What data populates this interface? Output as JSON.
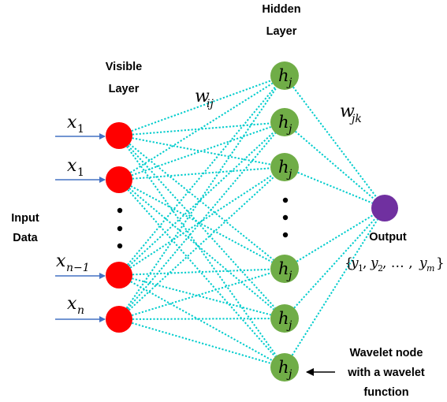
{
  "colors": {
    "input_node": "#ff0000",
    "hidden_node": "#70ad47",
    "output_node": "#7030a0",
    "connection": "#00cccc",
    "input_arrow": "#4472c4",
    "annotation_arrow": "#000000"
  },
  "labels": {
    "hidden_layer_line1": "Hidden",
    "hidden_layer_line2": "Layer",
    "visible_layer_line1": "Visible",
    "visible_layer_line2": "Layer",
    "input_data_line1": "Input",
    "input_data_line2": "Data",
    "output": "Output",
    "wavelet_line1": "Wavelet node",
    "wavelet_line2": "with a wavelet",
    "wavelet_line3": "function"
  },
  "math": {
    "w_ij_base": "w",
    "w_ij_sub": "ij",
    "w_jk_base": "w",
    "w_jk_sub": "jk",
    "hidden_node_base": "h",
    "hidden_node_sub": "j",
    "inputs": [
      {
        "base": "x",
        "sub": "1"
      },
      {
        "base": "x",
        "sub": "1"
      },
      {
        "base": "x",
        "sub": "n−1"
      },
      {
        "base": "x",
        "sub": "n"
      }
    ],
    "output_set": {
      "open": "{",
      "y": "y",
      "sub1": "1",
      "sep1": ", ",
      "sub2": "2",
      "sep2": ", … , ",
      "subm": "m",
      "close": "}"
    }
  },
  "icons": [
    "vertical-ellipsis-icon",
    "input-arrow-icon",
    "annotation-arrow-icon"
  ]
}
